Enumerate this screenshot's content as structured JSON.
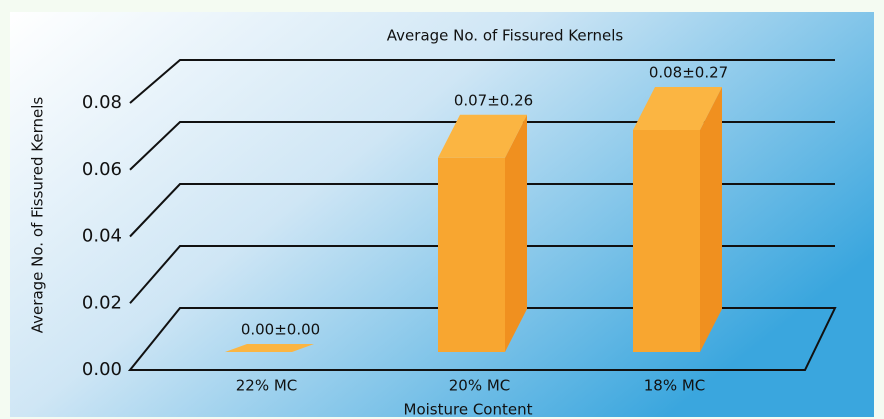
{
  "chart_data": {
    "type": "bar3d",
    "title": "Average No. of Fissured Kernels",
    "x_label": "Moisture Content",
    "y_label": "Average No. of Fissured Kernels",
    "categories": [
      "22% MC",
      "20% MC",
      "18% MC"
    ],
    "values": [
      0,
      0.07,
      0.08
    ],
    "value_labels": [
      "0.00±0.00",
      "0.07±0.26",
      "0.08±0.27"
    ],
    "color": "#f8a630",
    "ylim": [
      0,
      0.08
    ],
    "yticks": [
      {
        "value": 0,
        "label": "0.00"
      },
      {
        "value": 0.02,
        "label": "0.02"
      },
      {
        "value": 0.04,
        "label": "0.04"
      },
      {
        "value": 0.06,
        "label": "0.06"
      },
      {
        "value": 0.08,
        "label": "0.08"
      }
    ],
    "grid": true
  }
}
